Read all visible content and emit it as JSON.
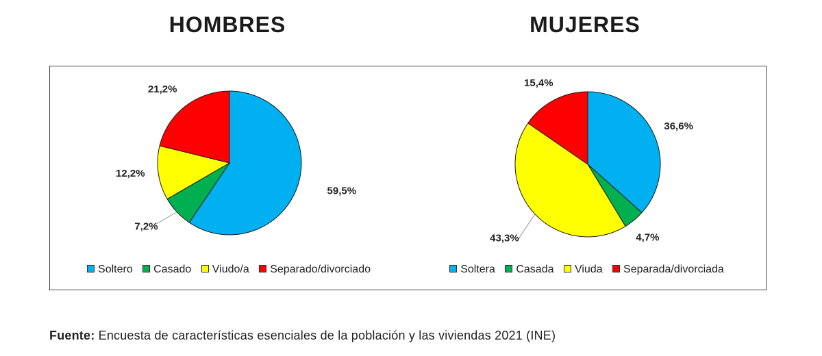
{
  "chart_data": [
    {
      "type": "pie",
      "title": "HOMBRES",
      "categories": [
        "Soltero",
        "Casado",
        "Viudo/a",
        "Separado/divorciado"
      ],
      "values": [
        59.5,
        7.2,
        12.2,
        21.2
      ],
      "labels": [
        "59,5%",
        "7,2%",
        "12,2%",
        "21,2%"
      ],
      "colors": [
        "#00B0F0",
        "#00B050",
        "#FFFF00",
        "#FF0000"
      ],
      "legend_position": "bottom"
    },
    {
      "type": "pie",
      "title": "MUJERES",
      "categories": [
        "Soltera",
        "Casada",
        "Viuda",
        "Separada/divorciada"
      ],
      "values": [
        36.6,
        4.7,
        43.3,
        15.4
      ],
      "labels": [
        "36,6%",
        "4,7%",
        "43,3%",
        "15,4%"
      ],
      "colors": [
        "#00B0F0",
        "#00B050",
        "#FFFF00",
        "#FF0000"
      ],
      "legend_position": "bottom"
    }
  ],
  "source": {
    "label": "Fuente:",
    "text": "Encuesta de características esenciales de la población y las viviendas 2021 (INE)"
  }
}
